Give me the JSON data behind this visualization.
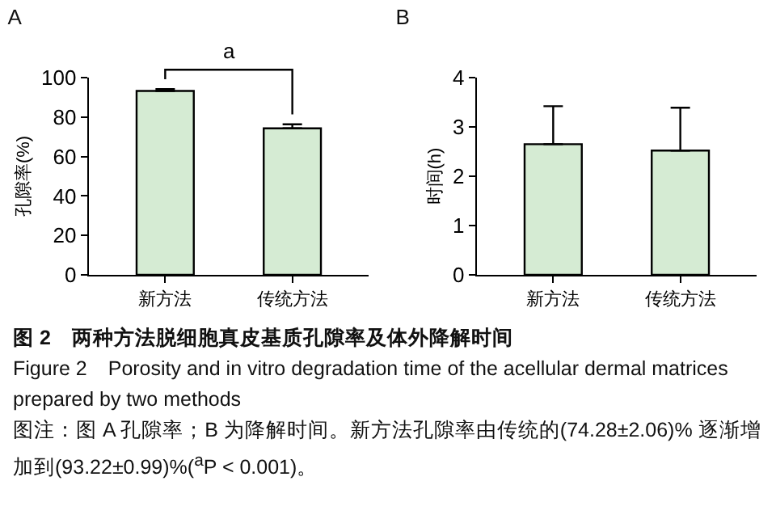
{
  "chart_data": [
    {
      "type": "bar",
      "title": "A",
      "ylabel": "孔隙率(%)",
      "categories": [
        "新方法",
        "传统方法"
      ],
      "series": [
        {
          "color": "#d5ebd3",
          "values": [
            93.22,
            74.28
          ],
          "errors": [
            [
              93.22,
              94.21
            ],
            [
              74.28,
              76.34
            ]
          ]
        }
      ],
      "ylim": [
        0,
        100
      ],
      "yticks": [
        0,
        20,
        40,
        60,
        80,
        100
      ],
      "grid": false,
      "annotations": [
        "a",
        "图 2　两种方法脱细胞真皮基质孔隙率及体外降解时间",
        "Figure 2　Porosity and in vitro degradation time of the acellular dermal matrices prepared by two methods",
        "图注：图 A 孔隙率；B 为降解时间。新方法孔隙率由传统的(74.28±2.06)% 逐渐增加到(93.22±0.99)%($^{a}$P < 0.001)。"
      ]
    },
    {
      "type": "bar",
      "title": "B",
      "ylabel": "时间(h)",
      "categories": [
        "新方法",
        "传统方法"
      ],
      "series": [
        {
          "color": "#d5ebd3",
          "values": [
            2.65,
            2.52
          ],
          "errors": [
            [
              2.65,
              3.42
            ],
            [
              2.52,
              3.39
            ]
          ]
        }
      ],
      "ylim": [
        0,
        4
      ],
      "yticks": [
        0,
        1,
        2,
        3,
        4
      ],
      "grid": false
    }
  ]
}
